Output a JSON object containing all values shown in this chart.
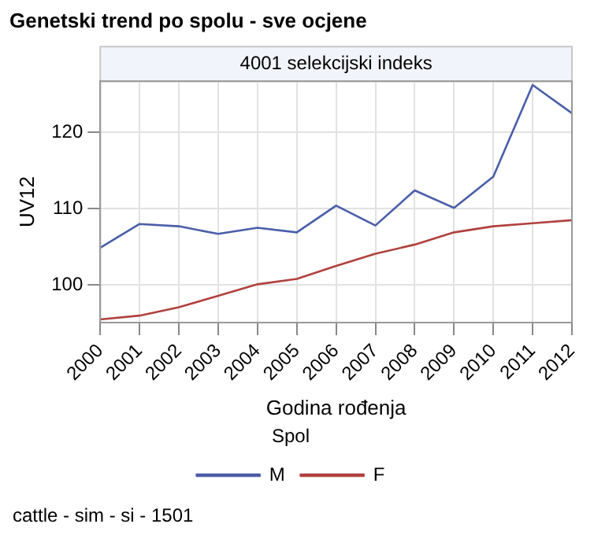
{
  "chart_data": {
    "type": "line",
    "title": "Genetski trend po spolu - sve ocjene",
    "subtitle": "4001 selekcijski indeks",
    "xlabel": "Godina rođenja",
    "ylabel": "UV12",
    "legend_title": "Spol",
    "x": [
      2000,
      2001,
      2002,
      2003,
      2004,
      2005,
      2006,
      2007,
      2008,
      2009,
      2010,
      2011,
      2012
    ],
    "series": [
      {
        "name": "M",
        "color": "#4a5ea8",
        "values": [
          104.9,
          108.0,
          107.7,
          106.7,
          107.5,
          106.9,
          110.4,
          107.8,
          112.4,
          110.1,
          114.2,
          126.2,
          122.5
        ]
      },
      {
        "name": "F",
        "color": "#b0413e",
        "values": [
          95.5,
          96.0,
          97.1,
          98.6,
          100.1,
          100.8,
          102.5,
          104.1,
          105.3,
          106.9,
          107.7,
          108.1,
          108.5
        ]
      }
    ],
    "xlim": [
      2000,
      2012
    ],
    "xticks": [
      2000,
      2001,
      2002,
      2003,
      2004,
      2005,
      2006,
      2007,
      2008,
      2009,
      2010,
      2011,
      2012
    ],
    "ylim": [
      95.1,
      126.7
    ],
    "yticks": [
      100,
      110,
      120
    ],
    "grid": true,
    "legend": "bottom",
    "marker": "none",
    "line_style": "solid",
    "annotations": [
      "cattle - sim - si - 1501"
    ]
  }
}
